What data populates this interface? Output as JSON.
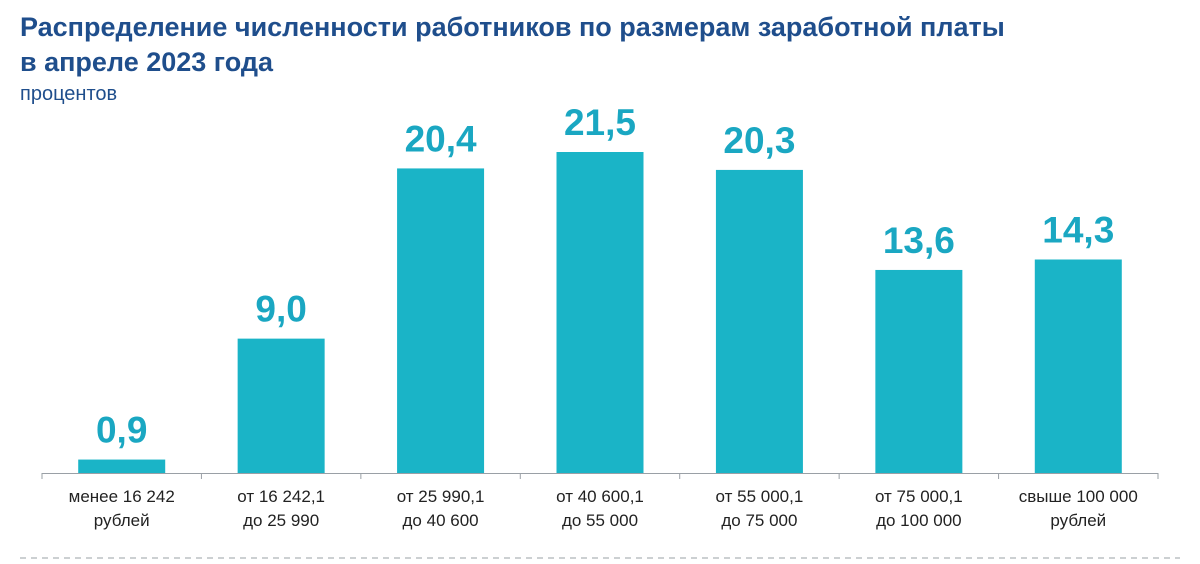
{
  "title": {
    "line1": "Распределение численности работников по размерам заработной платы",
    "line2": "в апреле 2023 года"
  },
  "subtitle": "процентов",
  "colors": {
    "bar": "#1ab4c7",
    "value": "#1aa7c2",
    "title": "#1f4e8c",
    "axis": "#9aa0a6"
  },
  "chart_data": {
    "type": "bar",
    "title": "Распределение численности работников по размерам заработной платы в апреле 2023 года",
    "ylabel": "процентов",
    "xlabel": "",
    "categories": [
      [
        "менее 16 242",
        "рублей"
      ],
      [
        "от 16 242,1",
        "до 25 990"
      ],
      [
        "от 25 990,1",
        "до 40 600"
      ],
      [
        "от 40 600,1",
        "до 55 000"
      ],
      [
        "от 55 000,1",
        "до 75 000"
      ],
      [
        "от 75 000,1",
        "до 100 000"
      ],
      [
        "свыше 100 000",
        "рублей"
      ]
    ],
    "values": [
      0.9,
      9.0,
      20.4,
      21.5,
      20.3,
      13.6,
      14.3
    ],
    "value_labels": [
      "0,9",
      "9,0",
      "20,4",
      "21,5",
      "20,3",
      "13,6",
      "14,3"
    ],
    "ylim": [
      0,
      21.5
    ],
    "grid": false,
    "legend": "none"
  }
}
